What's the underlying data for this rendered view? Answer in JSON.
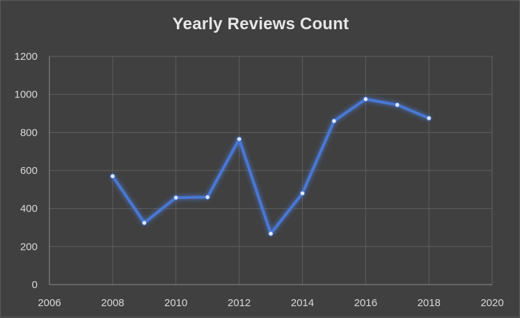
{
  "chart_data": {
    "type": "line",
    "title": "Yearly Reviews Count",
    "xlabel": "",
    "ylabel": "",
    "xlim": [
      2006,
      2020
    ],
    "ylim": [
      0,
      1200
    ],
    "x_ticks": [
      2006,
      2008,
      2010,
      2012,
      2014,
      2016,
      2018,
      2020
    ],
    "y_ticks": [
      0,
      200,
      400,
      600,
      800,
      1000,
      1200
    ],
    "grid": true,
    "legend": "none",
    "series": [
      {
        "color": "#4a78d4",
        "x": [
          2008,
          2009,
          2010,
          2011,
          2012,
          2013,
          2014,
          2015,
          2016,
          2017,
          2018
        ],
        "y": [
          570,
          325,
          457,
          460,
          765,
          268,
          480,
          860,
          975,
          945,
          875
        ]
      }
    ]
  }
}
